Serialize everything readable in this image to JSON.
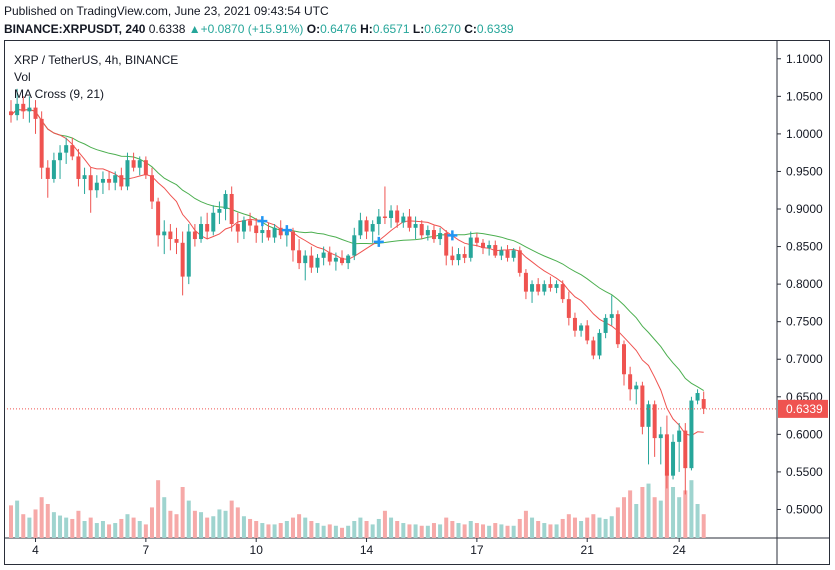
{
  "header": {
    "published": "Published on TradingView.com, June 23, 2021 09:43:54 UTC",
    "symbol": "BINANCE:XRPUSDT, 240",
    "close_label": "0.6338",
    "change_label": "+0.0870 (+15.91%)",
    "open_key": "O:",
    "open_val": "0.6476",
    "high_key": "H:",
    "high_val": "0.6571",
    "low_key": "L:",
    "low_val": "0.6270",
    "close_key": "C:",
    "close_val": "0.6339",
    "up_icon": "triangle-up-icon"
  },
  "legend": {
    "title": "XRP / TetherUS, 4h, BINANCE",
    "vol": "Vol",
    "ma": "MA Cross (9, 21)"
  },
  "colors": {
    "up": "#26a69a",
    "down": "#ef5350",
    "ma_fast": "#ef5350",
    "ma_slow": "#4caf50",
    "cross": "#2196f3",
    "vol_up": "#9fd4cf",
    "vol_down": "#f6a9a8"
  },
  "chart_data": {
    "type": "candlestick",
    "y_range": [
      0.462,
      1.125
    ],
    "y_ticks": [
      "1.1000",
      "1.0500",
      "1.0000",
      "0.9500",
      "0.9000",
      "0.8500",
      "0.8000",
      "0.7500",
      "0.7000",
      "0.6500",
      "0.6000",
      "0.5500",
      "0.5000"
    ],
    "x_ticks": [
      {
        "label": "4",
        "index": 4
      },
      {
        "label": "7",
        "index": 22
      },
      {
        "label": "10",
        "index": 40
      },
      {
        "label": "14",
        "index": 58
      },
      {
        "label": "17",
        "index": 76
      },
      {
        "label": "21",
        "index": 94
      },
      {
        "label": "24",
        "index": 109
      }
    ],
    "last_price": "0.6339",
    "ma_fast_period": 9,
    "ma_slow_period": 21,
    "candles": [
      {
        "o": 1.03,
        "h": 1.045,
        "l": 1.015,
        "c": 1.025,
        "v": 0.48
      },
      {
        "o": 1.025,
        "h": 1.06,
        "l": 1.018,
        "c": 1.04,
        "v": 0.55
      },
      {
        "o": 1.04,
        "h": 1.05,
        "l": 1.02,
        "c": 1.03,
        "v": 0.35
      },
      {
        "o": 1.03,
        "h": 1.05,
        "l": 1.015,
        "c": 1.035,
        "v": 0.3
      },
      {
        "o": 1.035,
        "h": 1.045,
        "l": 1.0,
        "c": 1.02,
        "v": 0.42
      },
      {
        "o": 1.02,
        "h": 1.03,
        "l": 0.94,
        "c": 0.955,
        "v": 0.6
      },
      {
        "o": 0.955,
        "h": 0.965,
        "l": 0.915,
        "c": 0.94,
        "v": 0.5
      },
      {
        "o": 0.94,
        "h": 0.975,
        "l": 0.935,
        "c": 0.965,
        "v": 0.38
      },
      {
        "o": 0.965,
        "h": 0.985,
        "l": 0.94,
        "c": 0.975,
        "v": 0.33
      },
      {
        "o": 0.975,
        "h": 0.995,
        "l": 0.96,
        "c": 0.985,
        "v": 0.3
      },
      {
        "o": 0.985,
        "h": 0.995,
        "l": 0.965,
        "c": 0.97,
        "v": 0.28
      },
      {
        "o": 0.97,
        "h": 0.98,
        "l": 0.93,
        "c": 0.94,
        "v": 0.4
      },
      {
        "o": 0.94,
        "h": 0.955,
        "l": 0.92,
        "c": 0.945,
        "v": 0.25
      },
      {
        "o": 0.945,
        "h": 0.955,
        "l": 0.895,
        "c": 0.925,
        "v": 0.3
      },
      {
        "o": 0.925,
        "h": 0.945,
        "l": 0.915,
        "c": 0.935,
        "v": 0.22
      },
      {
        "o": 0.935,
        "h": 0.95,
        "l": 0.92,
        "c": 0.94,
        "v": 0.25
      },
      {
        "o": 0.94,
        "h": 0.95,
        "l": 0.925,
        "c": 0.935,
        "v": 0.2
      },
      {
        "o": 0.935,
        "h": 0.95,
        "l": 0.925,
        "c": 0.945,
        "v": 0.22
      },
      {
        "o": 0.945,
        "h": 0.955,
        "l": 0.925,
        "c": 0.93,
        "v": 0.28
      },
      {
        "o": 0.93,
        "h": 0.975,
        "l": 0.925,
        "c": 0.965,
        "v": 0.35
      },
      {
        "o": 0.965,
        "h": 0.975,
        "l": 0.95,
        "c": 0.955,
        "v": 0.3
      },
      {
        "o": 0.955,
        "h": 0.97,
        "l": 0.945,
        "c": 0.965,
        "v": 0.25
      },
      {
        "o": 0.965,
        "h": 0.97,
        "l": 0.94,
        "c": 0.945,
        "v": 0.2
      },
      {
        "o": 0.945,
        "h": 0.955,
        "l": 0.9,
        "c": 0.91,
        "v": 0.45
      },
      {
        "o": 0.91,
        "h": 0.915,
        "l": 0.85,
        "c": 0.865,
        "v": 0.85
      },
      {
        "o": 0.865,
        "h": 0.885,
        "l": 0.84,
        "c": 0.87,
        "v": 0.6
      },
      {
        "o": 0.87,
        "h": 0.88,
        "l": 0.845,
        "c": 0.86,
        "v": 0.4
      },
      {
        "o": 0.86,
        "h": 0.875,
        "l": 0.84,
        "c": 0.855,
        "v": 0.35
      },
      {
        "o": 0.855,
        "h": 0.87,
        "l": 0.785,
        "c": 0.81,
        "v": 0.75
      },
      {
        "o": 0.81,
        "h": 0.88,
        "l": 0.8,
        "c": 0.87,
        "v": 0.55
      },
      {
        "o": 0.87,
        "h": 0.88,
        "l": 0.85,
        "c": 0.86,
        "v": 0.4
      },
      {
        "o": 0.86,
        "h": 0.89,
        "l": 0.855,
        "c": 0.88,
        "v": 0.38
      },
      {
        "o": 0.88,
        "h": 0.895,
        "l": 0.86,
        "c": 0.87,
        "v": 0.3
      },
      {
        "o": 0.87,
        "h": 0.905,
        "l": 0.865,
        "c": 0.895,
        "v": 0.32
      },
      {
        "o": 0.895,
        "h": 0.91,
        "l": 0.88,
        "c": 0.9,
        "v": 0.42
      },
      {
        "o": 0.9,
        "h": 0.925,
        "l": 0.885,
        "c": 0.92,
        "v": 0.4
      },
      {
        "o": 0.92,
        "h": 0.93,
        "l": 0.87,
        "c": 0.88,
        "v": 0.55
      },
      {
        "o": 0.88,
        "h": 0.895,
        "l": 0.855,
        "c": 0.87,
        "v": 0.45
      },
      {
        "o": 0.87,
        "h": 0.89,
        "l": 0.86,
        "c": 0.885,
        "v": 0.32
      },
      {
        "o": 0.885,
        "h": 0.895,
        "l": 0.87,
        "c": 0.878,
        "v": 0.28
      },
      {
        "o": 0.878,
        "h": 0.888,
        "l": 0.855,
        "c": 0.868,
        "v": 0.25
      },
      {
        "o": 0.868,
        "h": 0.88,
        "l": 0.855,
        "c": 0.872,
        "v": 0.22
      },
      {
        "o": 0.872,
        "h": 0.882,
        "l": 0.858,
        "c": 0.862,
        "v": 0.2
      },
      {
        "o": 0.862,
        "h": 0.88,
        "l": 0.855,
        "c": 0.875,
        "v": 0.2
      },
      {
        "o": 0.875,
        "h": 0.885,
        "l": 0.86,
        "c": 0.865,
        "v": 0.22
      },
      {
        "o": 0.865,
        "h": 0.878,
        "l": 0.85,
        "c": 0.87,
        "v": 0.25
      },
      {
        "o": 0.87,
        "h": 0.875,
        "l": 0.83,
        "c": 0.845,
        "v": 0.3
      },
      {
        "o": 0.845,
        "h": 0.86,
        "l": 0.82,
        "c": 0.828,
        "v": 0.35
      },
      {
        "o": 0.828,
        "h": 0.845,
        "l": 0.805,
        "c": 0.838,
        "v": 0.3
      },
      {
        "o": 0.838,
        "h": 0.85,
        "l": 0.815,
        "c": 0.822,
        "v": 0.25
      },
      {
        "o": 0.822,
        "h": 0.84,
        "l": 0.815,
        "c": 0.835,
        "v": 0.22
      },
      {
        "o": 0.835,
        "h": 0.85,
        "l": 0.825,
        "c": 0.842,
        "v": 0.18
      },
      {
        "o": 0.842,
        "h": 0.85,
        "l": 0.825,
        "c": 0.83,
        "v": 0.2
      },
      {
        "o": 0.83,
        "h": 0.842,
        "l": 0.818,
        "c": 0.835,
        "v": 0.18
      },
      {
        "o": 0.835,
        "h": 0.845,
        "l": 0.825,
        "c": 0.828,
        "v": 0.15
      },
      {
        "o": 0.828,
        "h": 0.84,
        "l": 0.82,
        "c": 0.838,
        "v": 0.18
      },
      {
        "o": 0.838,
        "h": 0.875,
        "l": 0.832,
        "c": 0.865,
        "v": 0.25
      },
      {
        "o": 0.865,
        "h": 0.895,
        "l": 0.86,
        "c": 0.885,
        "v": 0.3
      },
      {
        "o": 0.885,
        "h": 0.89,
        "l": 0.86,
        "c": 0.87,
        "v": 0.25
      },
      {
        "o": 0.87,
        "h": 0.885,
        "l": 0.855,
        "c": 0.88,
        "v": 0.2
      },
      {
        "o": 0.88,
        "h": 0.9,
        "l": 0.865,
        "c": 0.89,
        "v": 0.28
      },
      {
        "o": 0.89,
        "h": 0.93,
        "l": 0.88,
        "c": 0.888,
        "v": 0.4
      },
      {
        "o": 0.888,
        "h": 0.905,
        "l": 0.875,
        "c": 0.898,
        "v": 0.3
      },
      {
        "o": 0.898,
        "h": 0.905,
        "l": 0.875,
        "c": 0.882,
        "v": 0.25
      },
      {
        "o": 0.882,
        "h": 0.895,
        "l": 0.875,
        "c": 0.89,
        "v": 0.22
      },
      {
        "o": 0.89,
        "h": 0.9,
        "l": 0.87,
        "c": 0.875,
        "v": 0.2
      },
      {
        "o": 0.875,
        "h": 0.89,
        "l": 0.86,
        "c": 0.88,
        "v": 0.2
      },
      {
        "o": 0.88,
        "h": 0.885,
        "l": 0.86,
        "c": 0.865,
        "v": 0.18
      },
      {
        "o": 0.865,
        "h": 0.878,
        "l": 0.858,
        "c": 0.872,
        "v": 0.18
      },
      {
        "o": 0.872,
        "h": 0.878,
        "l": 0.855,
        "c": 0.86,
        "v": 0.22
      },
      {
        "o": 0.86,
        "h": 0.875,
        "l": 0.852,
        "c": 0.868,
        "v": 0.2
      },
      {
        "o": 0.868,
        "h": 0.872,
        "l": 0.825,
        "c": 0.838,
        "v": 0.3
      },
      {
        "o": 0.838,
        "h": 0.85,
        "l": 0.825,
        "c": 0.832,
        "v": 0.25
      },
      {
        "o": 0.832,
        "h": 0.848,
        "l": 0.825,
        "c": 0.84,
        "v": 0.22
      },
      {
        "o": 0.84,
        "h": 0.85,
        "l": 0.828,
        "c": 0.835,
        "v": 0.2
      },
      {
        "o": 0.835,
        "h": 0.87,
        "l": 0.83,
        "c": 0.862,
        "v": 0.25
      },
      {
        "o": 0.862,
        "h": 0.868,
        "l": 0.85,
        "c": 0.855,
        "v": 0.22
      },
      {
        "o": 0.855,
        "h": 0.86,
        "l": 0.84,
        "c": 0.848,
        "v": 0.2
      },
      {
        "o": 0.848,
        "h": 0.858,
        "l": 0.838,
        "c": 0.852,
        "v": 0.18
      },
      {
        "o": 0.852,
        "h": 0.858,
        "l": 0.835,
        "c": 0.838,
        "v": 0.22
      },
      {
        "o": 0.838,
        "h": 0.85,
        "l": 0.832,
        "c": 0.845,
        "v": 0.2
      },
      {
        "o": 0.845,
        "h": 0.852,
        "l": 0.83,
        "c": 0.835,
        "v": 0.18
      },
      {
        "o": 0.835,
        "h": 0.848,
        "l": 0.83,
        "c": 0.845,
        "v": 0.18
      },
      {
        "o": 0.845,
        "h": 0.85,
        "l": 0.81,
        "c": 0.815,
        "v": 0.28
      },
      {
        "o": 0.815,
        "h": 0.82,
        "l": 0.78,
        "c": 0.79,
        "v": 0.4
      },
      {
        "o": 0.79,
        "h": 0.805,
        "l": 0.775,
        "c": 0.8,
        "v": 0.3
      },
      {
        "o": 0.8,
        "h": 0.808,
        "l": 0.785,
        "c": 0.79,
        "v": 0.25
      },
      {
        "o": 0.79,
        "h": 0.805,
        "l": 0.785,
        "c": 0.8,
        "v": 0.22
      },
      {
        "o": 0.8,
        "h": 0.81,
        "l": 0.79,
        "c": 0.795,
        "v": 0.2
      },
      {
        "o": 0.795,
        "h": 0.805,
        "l": 0.788,
        "c": 0.8,
        "v": 0.2
      },
      {
        "o": 0.8,
        "h": 0.805,
        "l": 0.775,
        "c": 0.78,
        "v": 0.28
      },
      {
        "o": 0.78,
        "h": 0.79,
        "l": 0.745,
        "c": 0.755,
        "v": 0.35
      },
      {
        "o": 0.755,
        "h": 0.762,
        "l": 0.73,
        "c": 0.738,
        "v": 0.3
      },
      {
        "o": 0.738,
        "h": 0.748,
        "l": 0.73,
        "c": 0.745,
        "v": 0.25
      },
      {
        "o": 0.745,
        "h": 0.752,
        "l": 0.72,
        "c": 0.725,
        "v": 0.3
      },
      {
        "o": 0.725,
        "h": 0.73,
        "l": 0.7,
        "c": 0.705,
        "v": 0.35
      },
      {
        "o": 0.705,
        "h": 0.74,
        "l": 0.7,
        "c": 0.735,
        "v": 0.3
      },
      {
        "o": 0.735,
        "h": 0.76,
        "l": 0.728,
        "c": 0.755,
        "v": 0.28
      },
      {
        "o": 0.755,
        "h": 0.785,
        "l": 0.745,
        "c": 0.76,
        "v": 0.32
      },
      {
        "o": 0.76,
        "h": 0.765,
        "l": 0.715,
        "c": 0.72,
        "v": 0.45
      },
      {
        "o": 0.72,
        "h": 0.725,
        "l": 0.665,
        "c": 0.68,
        "v": 0.6
      },
      {
        "o": 0.68,
        "h": 0.69,
        "l": 0.645,
        "c": 0.66,
        "v": 0.7
      },
      {
        "o": 0.66,
        "h": 0.67,
        "l": 0.64,
        "c": 0.665,
        "v": 0.5
      },
      {
        "o": 0.665,
        "h": 0.67,
        "l": 0.6,
        "c": 0.61,
        "v": 0.75
      },
      {
        "o": 0.61,
        "h": 0.645,
        "l": 0.56,
        "c": 0.64,
        "v": 0.8
      },
      {
        "o": 0.64,
        "h": 0.645,
        "l": 0.57,
        "c": 0.595,
        "v": 0.6
      },
      {
        "o": 0.595,
        "h": 0.61,
        "l": 0.56,
        "c": 0.6,
        "v": 0.55
      },
      {
        "o": 0.6,
        "h": 0.625,
        "l": 0.528,
        "c": 0.545,
        "v": 0.95
      },
      {
        "o": 0.545,
        "h": 0.6,
        "l": 0.54,
        "c": 0.59,
        "v": 0.75
      },
      {
        "o": 0.59,
        "h": 0.615,
        "l": 0.55,
        "c": 0.605,
        "v": 0.6
      },
      {
        "o": 0.605,
        "h": 0.615,
        "l": 0.52,
        "c": 0.555,
        "v": 0.7
      },
      {
        "o": 0.555,
        "h": 0.65,
        "l": 0.552,
        "c": 0.645,
        "v": 0.85
      },
      {
        "o": 0.645,
        "h": 0.66,
        "l": 0.64,
        "c": 0.655,
        "v": 0.5
      },
      {
        "o": 0.647,
        "h": 0.657,
        "l": 0.627,
        "c": 0.634,
        "v": 0.35
      }
    ]
  }
}
